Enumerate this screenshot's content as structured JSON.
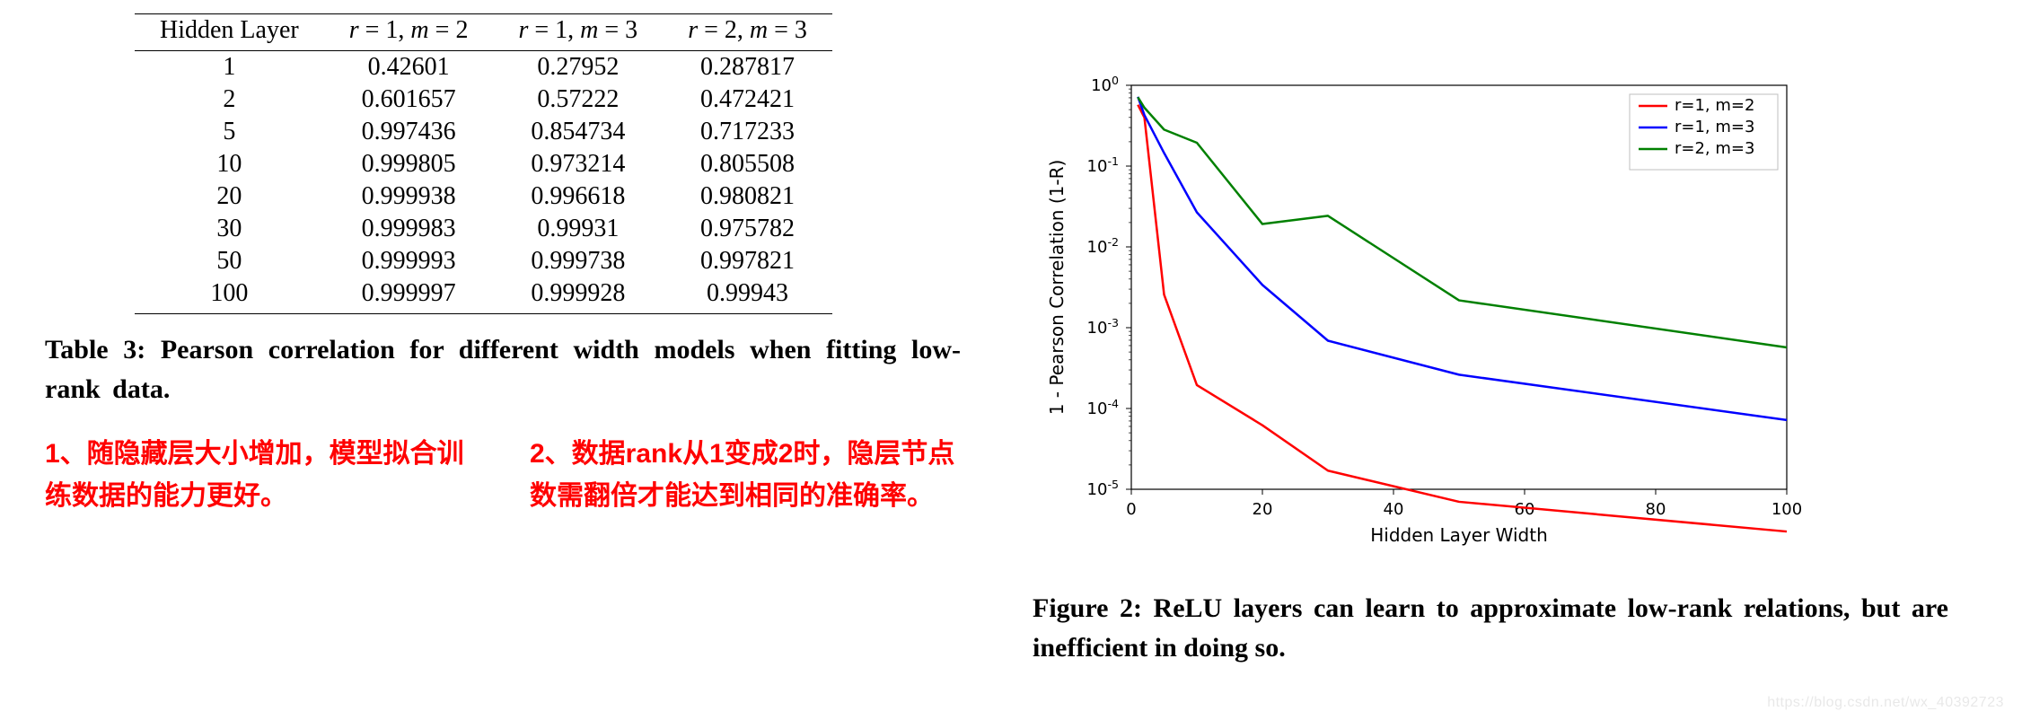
{
  "table": {
    "columns": [
      "Hidden Layer",
      "r = 1, m = 2",
      "r = 1, m = 3",
      "r = 2, m = 3"
    ],
    "rows": [
      [
        "1",
        "0.42601",
        "0.27952",
        "0.287817"
      ],
      [
        "2",
        "0.601657",
        "0.57222",
        "0.472421"
      ],
      [
        "5",
        "0.997436",
        "0.854734",
        "0.717233"
      ],
      [
        "10",
        "0.999805",
        "0.973214",
        "0.805508"
      ],
      [
        "20",
        "0.999938",
        "0.996618",
        "0.980821"
      ],
      [
        "30",
        "0.999983",
        "0.99931",
        "0.975782"
      ],
      [
        "50",
        "0.999993",
        "0.999738",
        "0.997821"
      ],
      [
        "100",
        "0.999997",
        "0.999928",
        "0.99943"
      ]
    ],
    "caption": "Table 3: Pearson correlation for different width models when fitting low-rank data."
  },
  "annotations": {
    "note1": "1、随隐藏层大小增加，模型拟合训练数据的能力更好。",
    "note2": "2、数据rank从1变成2时，隐层节点数需翻倍才能达到相同的准确率。",
    "color": "#ff0000",
    "fontsize": 30
  },
  "chart": {
    "type": "line",
    "xlabel": "Hidden Layer Width",
    "ylabel": "1 - Pearson Correlation (1-R)",
    "xlim": [
      0,
      100
    ],
    "xtick_step": 20,
    "xticks": [
      0,
      20,
      40,
      60,
      80,
      100
    ],
    "yscale": "log",
    "ylim_exp": [
      -5,
      0
    ],
    "yticks_exp": [
      -5,
      -4,
      -3,
      -2,
      -1,
      0
    ],
    "ytick_labels": [
      "10⁻⁵",
      "10⁻⁴",
      "10⁻³",
      "10⁻²",
      "10⁻¹",
      "10⁰"
    ],
    "background_color": "#ffffff",
    "grid": false,
    "border_color": "#000000",
    "tick_fontsize": 18,
    "label_fontsize": 20,
    "legend_fontsize": 18,
    "line_width": 2.5,
    "legend_position": "upper-right",
    "legend_border_color": "#bfbfbf",
    "series": [
      {
        "name": "r=1, m=2",
        "color": "#ff0000",
        "x": [
          1,
          2,
          5,
          10,
          20,
          30,
          50,
          100
        ],
        "y": [
          0.57399,
          0.398343,
          0.002564,
          0.000195,
          6.2e-05,
          1.7e-05,
          7e-06,
          3e-06
        ]
      },
      {
        "name": "r=1, m=3",
        "color": "#0000ff",
        "x": [
          1,
          2,
          5,
          10,
          20,
          30,
          50,
          100
        ],
        "y": [
          0.72048,
          0.42778,
          0.145266,
          0.026786,
          0.003382,
          0.00069,
          0.000262,
          7.2e-05
        ]
      },
      {
        "name": "r=2, m=3",
        "color": "#008000",
        "x": [
          1,
          2,
          5,
          10,
          20,
          30,
          50,
          100
        ],
        "y": [
          0.712183,
          0.527579,
          0.282767,
          0.194492,
          0.019179,
          0.024218,
          0.002179,
          0.00057
        ]
      }
    ]
  },
  "figure_caption": "Figure 2: ReLU layers can learn to approximate low-rank relations, but are inefficient in doing so.",
  "watermark": "https://blog.csdn.net/wx_40392723"
}
